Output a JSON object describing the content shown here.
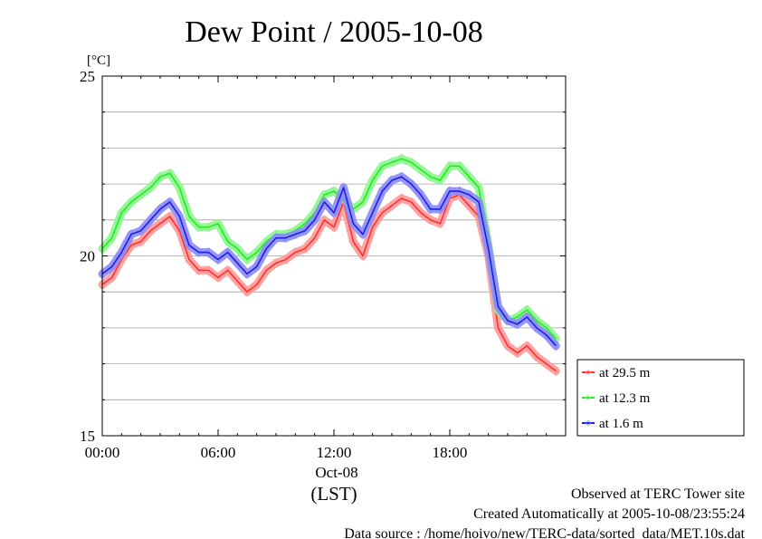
{
  "chart_data": {
    "type": "line",
    "title": "Dew Point / 2005-10-08",
    "ylabel": "[°C]",
    "ylim": [
      15,
      25
    ],
    "yticks": [
      "15",
      "20",
      "25"
    ],
    "xlim": [
      0,
      24
    ],
    "xticks": [
      {
        "label": "00:00",
        "value": 0
      },
      {
        "label": "06:00",
        "value": 6
      },
      {
        "label": "12:00",
        "value": 12
      },
      {
        "label": "18:00",
        "value": 18
      }
    ],
    "date_label": "Oct-08",
    "xlabel": "(LST)",
    "grid": true,
    "legend_position": "right, below plot",
    "x": [
      0,
      0.5,
      1,
      1.5,
      2,
      2.5,
      3,
      3.5,
      4,
      4.5,
      5,
      5.5,
      6,
      6.5,
      7,
      7.5,
      8,
      8.5,
      9,
      9.5,
      10,
      10.5,
      11,
      11.5,
      12,
      12.5,
      13,
      13.5,
      14,
      14.5,
      15,
      15.5,
      16,
      16.5,
      17,
      17.5,
      18,
      18.5,
      19,
      19.5,
      20,
      20.5,
      21,
      21.5,
      22,
      22.5,
      23,
      23.5
    ],
    "series": [
      {
        "name": "at 29.5 m",
        "color": "#ff3030",
        "values": [
          19.2,
          19.4,
          19.9,
          20.3,
          20.4,
          20.7,
          20.9,
          21.1,
          20.7,
          19.9,
          19.6,
          19.6,
          19.4,
          19.6,
          19.3,
          19.0,
          19.2,
          19.6,
          19.8,
          19.9,
          20.1,
          20.2,
          20.5,
          21.0,
          20.8,
          21.5,
          20.4,
          20.0,
          20.8,
          21.2,
          21.4,
          21.6,
          21.5,
          21.2,
          21.0,
          20.9,
          21.6,
          21.7,
          21.4,
          21.1,
          20.0,
          18.0,
          17.5,
          17.3,
          17.5,
          17.2,
          17.0,
          16.8
        ]
      },
      {
        "name": "at 12.3 m",
        "color": "#20ee20",
        "values": [
          20.2,
          20.5,
          21.2,
          21.5,
          21.7,
          21.9,
          22.2,
          22.3,
          21.9,
          21.1,
          20.8,
          20.8,
          20.9,
          20.4,
          20.2,
          19.9,
          20.1,
          20.4,
          20.6,
          20.6,
          20.7,
          20.9,
          21.2,
          21.7,
          21.8,
          21.6,
          21.3,
          21.5,
          22.1,
          22.5,
          22.6,
          22.7,
          22.6,
          22.4,
          22.2,
          22.1,
          22.5,
          22.5,
          22.2,
          21.9,
          20.3,
          18.5,
          18.2,
          18.3,
          18.5,
          18.2,
          18.0,
          17.7
        ]
      },
      {
        "name": "at 1.6 m",
        "color": "#1e1ee8",
        "values": [
          19.5,
          19.7,
          20.1,
          20.6,
          20.7,
          21.0,
          21.3,
          21.5,
          21.1,
          20.3,
          20.1,
          20.1,
          19.9,
          20.1,
          19.8,
          19.5,
          19.7,
          20.2,
          20.5,
          20.5,
          20.6,
          20.7,
          21.0,
          21.5,
          21.2,
          21.9,
          20.9,
          20.6,
          21.2,
          21.8,
          22.1,
          22.2,
          22.0,
          21.7,
          21.3,
          21.3,
          21.8,
          21.8,
          21.7,
          21.5,
          20.2,
          18.6,
          18.2,
          18.1,
          18.3,
          18.0,
          17.8,
          17.5
        ]
      }
    ]
  },
  "footer": {
    "line1": "Observed at TERC Tower site",
    "line2": "Created Automatically at 2005-10-08/23:55:24",
    "line3": "Data source : /home/hoivo/new/TERC-data/sorted_data/MET.10s.dat"
  }
}
